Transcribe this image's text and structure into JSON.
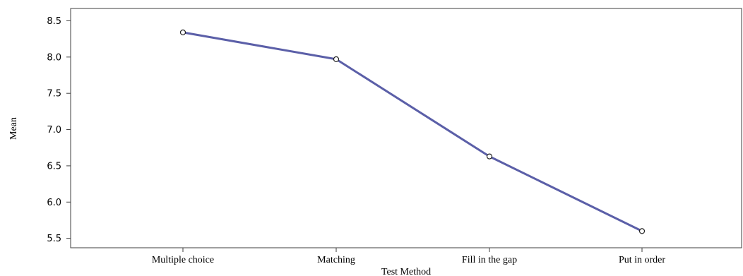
{
  "chart_data": {
    "type": "line",
    "title": "",
    "xlabel": "Test Method",
    "ylabel": "Mean",
    "categories": [
      "Multiple choice",
      "Matching",
      "Fill in the gap",
      "Put in order"
    ],
    "series": [
      {
        "values": [
          8.34,
          7.97,
          6.63,
          5.6
        ]
      }
    ],
    "ylim": [
      5.37,
      8.67
    ],
    "yticks": [
      "5.5",
      "6.0",
      "6.5",
      "7.0",
      "7.5",
      "8.0",
      "8.5"
    ],
    "grid": false,
    "legend": "none",
    "line_color": "#5b5fa8",
    "marker": "open-circle"
  }
}
